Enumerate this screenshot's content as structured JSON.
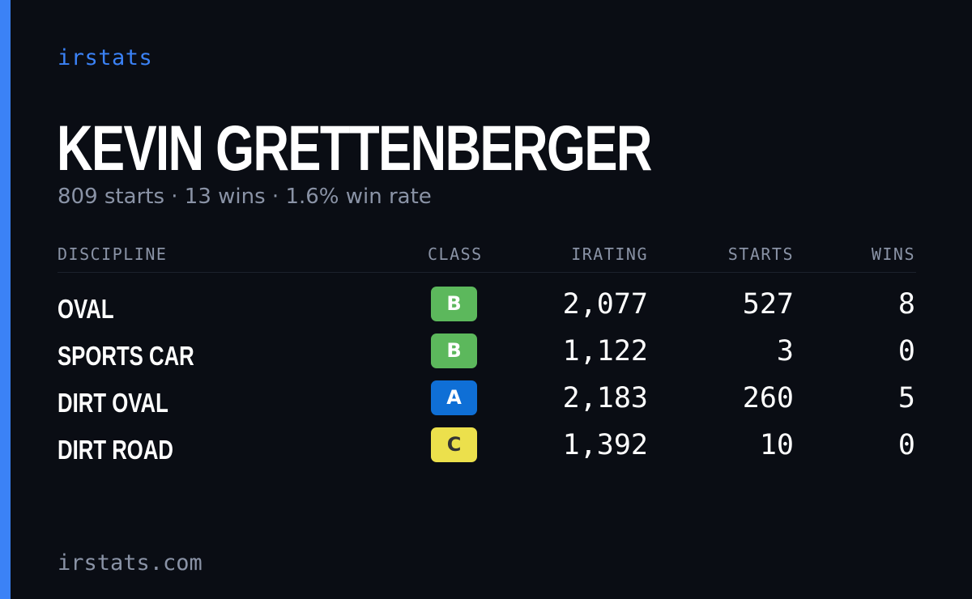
{
  "brand": "irstats",
  "player": {
    "name": "KEVIN GRETTENBERGER",
    "summary": "809 starts · 13 wins · 1.6% win rate"
  },
  "table": {
    "headers": {
      "discipline": "DISCIPLINE",
      "class": "CLASS",
      "irating": "IRATING",
      "starts": "STARTS",
      "wins": "WINS"
    },
    "rows": [
      {
        "discipline": "OVAL",
        "class": "B",
        "class_color": "#5cb85c",
        "class_text_color": "#ffffff",
        "irating": "2,077",
        "starts": "527",
        "wins": "8"
      },
      {
        "discipline": "SPORTS CAR",
        "class": "B",
        "class_color": "#5cb85c",
        "class_text_color": "#ffffff",
        "irating": "1,122",
        "starts": "3",
        "wins": "0"
      },
      {
        "discipline": "DIRT OVAL",
        "class": "A",
        "class_color": "#0f6fd6",
        "class_text_color": "#ffffff",
        "irating": "2,183",
        "starts": "260",
        "wins": "5"
      },
      {
        "discipline": "DIRT ROAD",
        "class": "C",
        "class_color": "#ece04c",
        "class_text_color": "#333333",
        "irating": "1,392",
        "starts": "10",
        "wins": "0"
      }
    ]
  },
  "footer": "irstats.com",
  "colors": {
    "background": "#0a0d14",
    "accent": "#3b82f6",
    "muted": "#8a93a6"
  }
}
